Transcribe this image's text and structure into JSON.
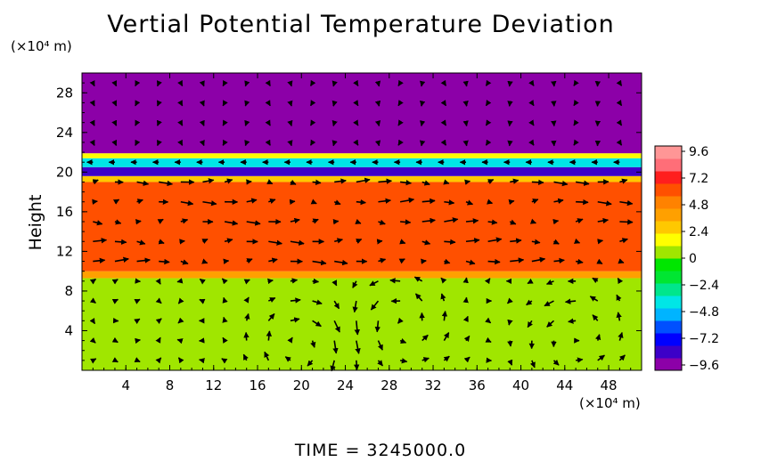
{
  "chart_data": {
    "type": "heatmap",
    "title": "Vertial Potential Temperature Deviation",
    "ylabel": "Height",
    "xlabel": "",
    "x_unit": "(×10⁴ m)",
    "y_unit": "(×10⁴ m)",
    "footer": "TIME = 3245000.0",
    "xlim": [
      0,
      51
    ],
    "ylim": [
      0,
      30
    ],
    "x_ticks": [
      "4",
      "8",
      "12",
      "16",
      "20",
      "24",
      "28",
      "32",
      "36",
      "40",
      "44",
      "48"
    ],
    "y_ticks": [
      "4",
      "8",
      "12",
      "16",
      "20",
      "24",
      "28"
    ],
    "colorbar": {
      "labels": [
        "9.6",
        "7.2",
        "4.8",
        "2.4",
        "0",
        "−2.4",
        "−4.8",
        "−7.2",
        "−9.6"
      ],
      "min": -9.6,
      "max": 9.6,
      "colors": [
        "#8c00a8",
        "#3c00c8",
        "#0000ff",
        "#0050ff",
        "#00b4ff",
        "#00e6e6",
        "#00e68c",
        "#00e632",
        "#00e600",
        "#a0e600",
        "#ffff00",
        "#ffc800",
        "#ffa000",
        "#ff8200",
        "#ff5000",
        "#ff1e1e",
        "#ff6e78",
        "#ff9696"
      ]
    },
    "layers": [
      {
        "y_range": [
          0,
          9.3
        ],
        "value": 0
      },
      {
        "y_range": [
          9.3,
          10.0
        ],
        "value": 4.0
      },
      {
        "y_range": [
          10.0,
          19.0
        ],
        "value": 6.0
      },
      {
        "y_range": [
          19.0,
          19.6
        ],
        "value": 3.0
      },
      {
        "y_range": [
          19.6,
          20.5
        ],
        "value": -7.5
      },
      {
        "y_range": [
          20.5,
          21.4
        ],
        "value": -4.2
      },
      {
        "y_range": [
          21.4,
          21.9
        ],
        "value": 1.2
      },
      {
        "y_range": [
          21.9,
          30
        ],
        "value": -9.6
      }
    ],
    "vector_field": {
      "x_spacing": 2,
      "y_spacing": 2,
      "eddies": [
        {
          "x": 20,
          "y": 3,
          "direction": "clockwise"
        },
        {
          "x": 29,
          "y": 5,
          "direction": "counter-clockwise"
        },
        {
          "x": 45,
          "y": 3.5,
          "direction": "counter-clockwise"
        }
      ]
    }
  }
}
